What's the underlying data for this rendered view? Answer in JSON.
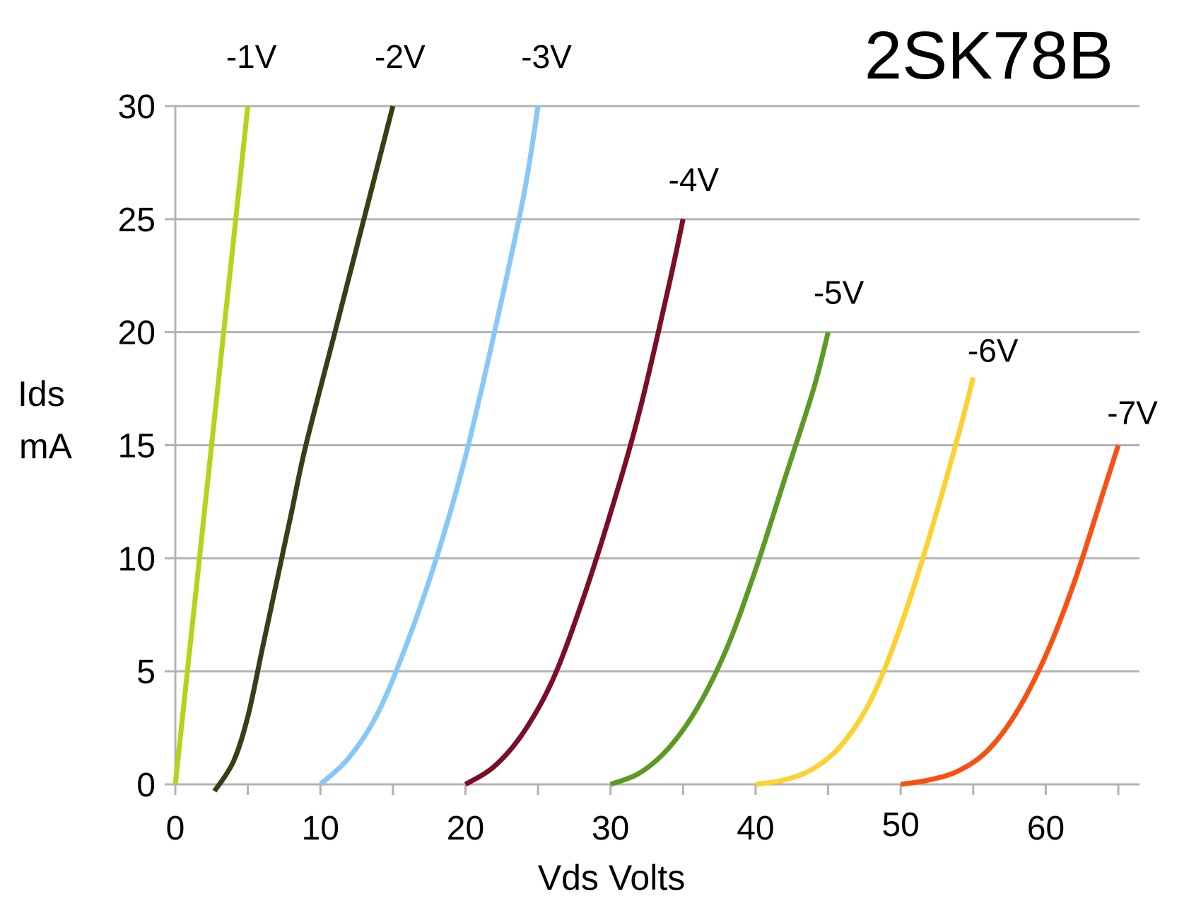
{
  "chart_data": {
    "type": "line",
    "title": "2SK78B",
    "xlabel": "Vds Volts",
    "ylabel": [
      "Ids",
      "mA"
    ],
    "xlim": [
      0,
      65
    ],
    "ylim": [
      0,
      30
    ],
    "x_ticks": [
      0,
      10,
      20,
      30,
      40,
      50,
      60
    ],
    "y_ticks": [
      0,
      5,
      10,
      15,
      20,
      25,
      30
    ],
    "grid": "horizontal",
    "legend": "labels at line ends",
    "series": [
      {
        "name": "-1V",
        "color": "#b5d31a",
        "points": [
          [
            0,
            0
          ],
          [
            1,
            6
          ],
          [
            2,
            12
          ],
          [
            3,
            18
          ],
          [
            4,
            24
          ],
          [
            5,
            30
          ]
        ]
      },
      {
        "name": "-2V",
        "color": "#354016",
        "points": [
          [
            2.7,
            -0.3
          ],
          [
            4,
            1
          ],
          [
            5,
            3
          ],
          [
            6,
            6
          ],
          [
            7,
            9
          ],
          [
            8,
            12
          ],
          [
            9,
            15
          ],
          [
            11,
            20
          ],
          [
            13,
            25
          ],
          [
            15,
            30
          ]
        ]
      },
      {
        "name": "-3V",
        "color": "#87c8f8",
        "points": [
          [
            10,
            0
          ],
          [
            12,
            1.2
          ],
          [
            14,
            3.2
          ],
          [
            16,
            6.3
          ],
          [
            18,
            10
          ],
          [
            20,
            14.5
          ],
          [
            22,
            20
          ],
          [
            24,
            26
          ],
          [
            25,
            30
          ]
        ]
      },
      {
        "name": "-4V",
        "color": "#7c0d26",
        "points": [
          [
            20,
            0
          ],
          [
            22,
            0.8
          ],
          [
            24,
            2.3
          ],
          [
            26,
            4.6
          ],
          [
            28,
            8
          ],
          [
            30,
            12
          ],
          [
            32,
            16.5
          ],
          [
            34,
            22
          ],
          [
            35,
            25
          ]
        ]
      },
      {
        "name": "-5V",
        "color": "#5d9a23",
        "points": [
          [
            30,
            0
          ],
          [
            32,
            0.5
          ],
          [
            34,
            1.6
          ],
          [
            36,
            3.4
          ],
          [
            38,
            6
          ],
          [
            40,
            9.5
          ],
          [
            42,
            13.5
          ],
          [
            44,
            17.5
          ],
          [
            45,
            20
          ]
        ]
      },
      {
        "name": "-6V",
        "color": "#fdd12e",
        "points": [
          [
            40,
            0
          ],
          [
            42,
            0.2
          ],
          [
            44,
            0.7
          ],
          [
            46,
            1.8
          ],
          [
            48,
            3.8
          ],
          [
            50,
            7
          ],
          [
            52,
            11
          ],
          [
            54,
            15.5
          ],
          [
            55,
            18
          ]
        ]
      },
      {
        "name": "-7V",
        "color": "#f95012",
        "points": [
          [
            50,
            0
          ],
          [
            52,
            0.2
          ],
          [
            54,
            0.6
          ],
          [
            56,
            1.5
          ],
          [
            58,
            3.2
          ],
          [
            60,
            5.7
          ],
          [
            62,
            9
          ],
          [
            64,
            13
          ],
          [
            65,
            15
          ]
        ]
      }
    ]
  }
}
